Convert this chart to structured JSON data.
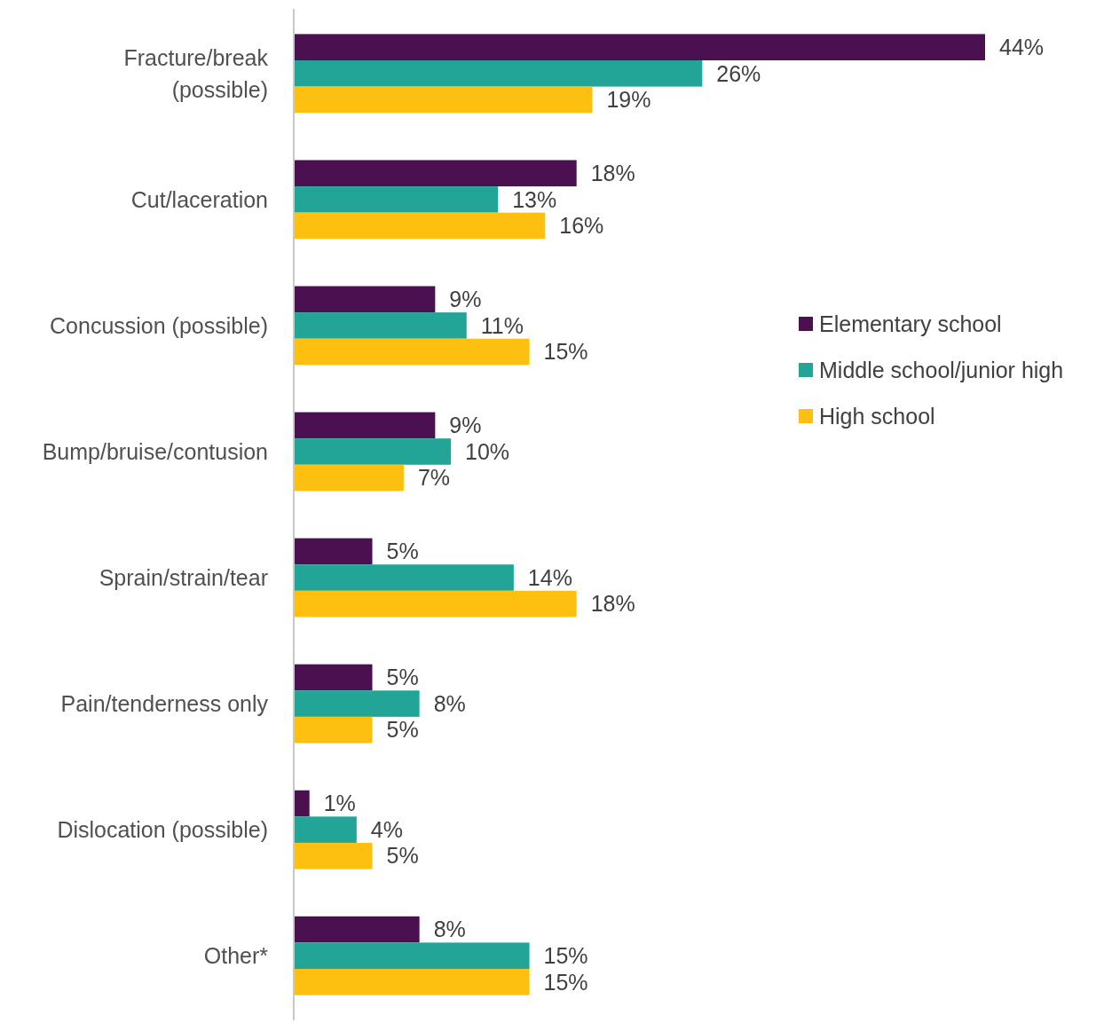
{
  "chart_data": {
    "type": "bar",
    "orientation": "horizontal",
    "categories": [
      "Fracture/break (possible)",
      "Cut/laceration",
      "Concussion (possible)",
      "Bump/bruise/contusion",
      "Sprain/strain/tear",
      "Pain/tenderness only",
      "Dislocation (possible)",
      "Other*"
    ],
    "series": [
      {
        "name": "Elementary school",
        "color": "#4b1050",
        "values": [
          44,
          18,
          9,
          9,
          5,
          5,
          1,
          8
        ],
        "value_labels": [
          "44%",
          "18%",
          "9%",
          "9%",
          "5%",
          "5%",
          "1%",
          "8%"
        ]
      },
      {
        "name": "Middle school/junior high",
        "color": "#22a596",
        "values": [
          26,
          13,
          11,
          10,
          14,
          8,
          4,
          15
        ],
        "value_labels": [
          "26%",
          "13%",
          "11%",
          "10%",
          "14%",
          "8%",
          "4%",
          "15%"
        ]
      },
      {
        "name": "High school",
        "color": "#fec010",
        "values": [
          19,
          16,
          15,
          7,
          18,
          5,
          5,
          15
        ],
        "value_labels": [
          "19%",
          "16%",
          "15%",
          "7%",
          "18%",
          "5%",
          "5%",
          "15%"
        ]
      }
    ],
    "legend": "right"
  }
}
